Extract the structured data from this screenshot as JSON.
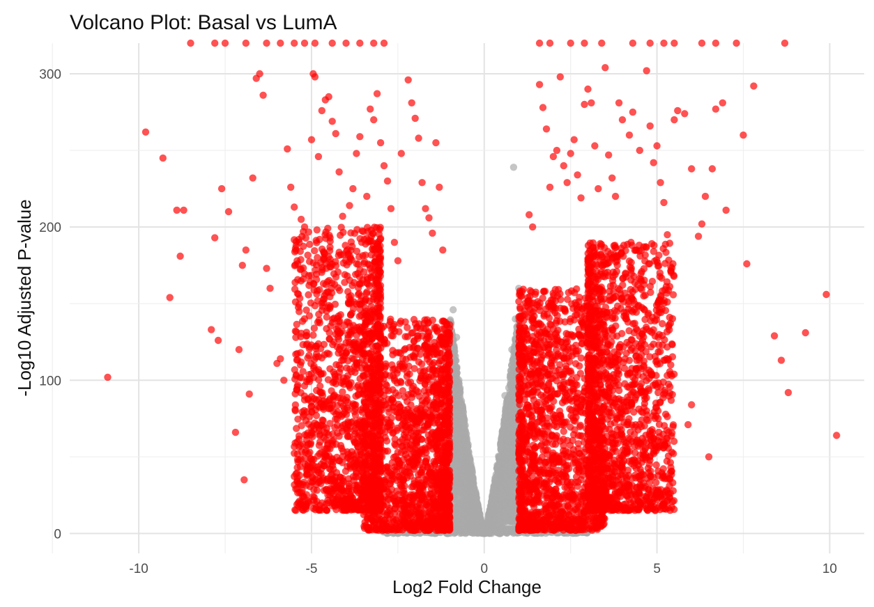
{
  "chart_data": {
    "type": "scatter",
    "title": "Volcano Plot: Basal vs LumA",
    "xlabel": "Log2 Fold Change",
    "ylabel": "-Log10 Adjusted P-value",
    "xlim": [
      -12,
      11
    ],
    "ylim": [
      -13,
      320
    ],
    "x_ticks": [
      -10,
      -5,
      0,
      5,
      10
    ],
    "x_tick_labels": [
      "-10",
      "-5",
      "0",
      "5",
      "10"
    ],
    "y_ticks": [
      0,
      100,
      200,
      300
    ],
    "y_tick_labels": [
      "0",
      "100",
      "200",
      "300"
    ],
    "grid": true,
    "legend": "none",
    "colors": {
      "significant": "#ff0000",
      "not_significant": "#a9a9a9"
    },
    "series": [
      {
        "color": "significant",
        "points": [
          [
            -10.9,
            102
          ],
          [
            -9.8,
            262
          ],
          [
            -9.3,
            245
          ],
          [
            -9.1,
            154
          ],
          [
            -8.9,
            211
          ],
          [
            -8.8,
            181
          ],
          [
            -8.7,
            211
          ],
          [
            -7.9,
            133
          ],
          [
            -7.8,
            193
          ],
          [
            -7.7,
            126
          ],
          [
            -7.6,
            225
          ],
          [
            -7.4,
            210
          ],
          [
            -7.2,
            66
          ],
          [
            -7.1,
            120
          ],
          [
            -7.0,
            175
          ],
          [
            -6.95,
            35
          ],
          [
            -6.9,
            185
          ],
          [
            -6.8,
            91
          ],
          [
            -6.7,
            232
          ],
          [
            -6.6,
            297
          ],
          [
            -6.5,
            300
          ],
          [
            -6.4,
            286
          ],
          [
            -6.3,
            173
          ],
          [
            -6.2,
            160
          ],
          [
            -6.0,
            111
          ],
          [
            -5.9,
            114
          ],
          [
            -5.8,
            100
          ],
          [
            -5.7,
            251
          ],
          [
            -5.6,
            226
          ],
          [
            -5.5,
            213
          ],
          [
            -5.4,
            176
          ],
          [
            -5.3,
            205
          ],
          [
            -5.2,
            200
          ],
          [
            -5.1,
            88
          ],
          [
            -5.0,
            257
          ],
          [
            -4.95,
            300
          ],
          [
            -4.9,
            298
          ],
          [
            -4.8,
            246
          ],
          [
            -4.7,
            276
          ],
          [
            -4.6,
            283
          ],
          [
            -4.5,
            285
          ],
          [
            -4.4,
            269
          ],
          [
            -4.3,
            261
          ],
          [
            -4.2,
            236
          ],
          [
            -4.1,
            207
          ],
          [
            -3.9,
            214
          ],
          [
            -3.8,
            225
          ],
          [
            -3.7,
            248
          ],
          [
            -3.6,
            259
          ],
          [
            -3.5,
            197
          ],
          [
            -3.4,
            220
          ],
          [
            -3.3,
            277
          ],
          [
            -3.2,
            270
          ],
          [
            -3.1,
            287
          ],
          [
            -3.0,
            255
          ],
          [
            -2.9,
            240
          ],
          [
            -2.8,
            230
          ],
          [
            -2.7,
            212
          ],
          [
            -2.6,
            190
          ],
          [
            -2.5,
            178
          ],
          [
            -2.4,
            248
          ],
          [
            -2.2,
            296
          ],
          [
            -2.1,
            281
          ],
          [
            -2.0,
            271
          ],
          [
            -1.9,
            258
          ],
          [
            -1.8,
            229
          ],
          [
            -1.7,
            212
          ],
          [
            -1.6,
            206
          ],
          [
            -1.5,
            196
          ],
          [
            -1.4,
            255
          ],
          [
            -1.3,
            226
          ],
          [
            -1.2,
            185
          ],
          [
            -8.5,
            320
          ],
          [
            -7.8,
            320
          ],
          [
            -7.5,
            320
          ],
          [
            -6.9,
            320
          ],
          [
            -6.3,
            320
          ],
          [
            -5.9,
            320
          ],
          [
            -5.5,
            320
          ],
          [
            -5.2,
            320
          ],
          [
            -4.9,
            320
          ],
          [
            -4.4,
            320
          ],
          [
            -4.0,
            320
          ],
          [
            -3.6,
            320
          ],
          [
            -3.2,
            320
          ],
          [
            -2.9,
            320
          ],
          [
            1.6,
            320
          ],
          [
            1.9,
            320
          ],
          [
            2.5,
            320
          ],
          [
            2.9,
            320
          ],
          [
            3.4,
            320
          ],
          [
            4.3,
            320
          ],
          [
            4.8,
            320
          ],
          [
            5.2,
            320
          ],
          [
            5.5,
            320
          ],
          [
            6.3,
            320
          ],
          [
            6.7,
            320
          ],
          [
            7.3,
            320
          ],
          [
            8.7,
            320
          ],
          [
            1.3,
            208
          ],
          [
            1.4,
            200
          ],
          [
            1.6,
            293
          ],
          [
            1.7,
            278
          ],
          [
            1.8,
            264
          ],
          [
            1.9,
            226
          ],
          [
            2.0,
            246
          ],
          [
            2.1,
            250
          ],
          [
            2.2,
            298
          ],
          [
            2.3,
            240
          ],
          [
            2.4,
            229
          ],
          [
            2.5,
            248
          ],
          [
            2.6,
            257
          ],
          [
            2.7,
            234
          ],
          [
            2.8,
            219
          ],
          [
            2.9,
            280
          ],
          [
            3.0,
            290
          ],
          [
            3.1,
            281
          ],
          [
            3.2,
            253
          ],
          [
            3.3,
            225
          ],
          [
            3.5,
            304
          ],
          [
            3.6,
            247
          ],
          [
            3.7,
            232
          ],
          [
            3.8,
            220
          ],
          [
            3.9,
            281
          ],
          [
            4.0,
            270
          ],
          [
            4.2,
            260
          ],
          [
            4.3,
            275
          ],
          [
            4.5,
            250
          ],
          [
            4.7,
            302
          ],
          [
            4.8,
            266
          ],
          [
            4.9,
            242
          ],
          [
            5.0,
            253
          ],
          [
            5.1,
            229
          ],
          [
            5.2,
            216
          ],
          [
            5.3,
            195
          ],
          [
            5.4,
            174
          ],
          [
            5.5,
            270
          ],
          [
            5.6,
            276
          ],
          [
            5.8,
            274
          ],
          [
            6.0,
            238
          ],
          [
            6.2,
            194
          ],
          [
            6.3,
            202
          ],
          [
            6.4,
            220
          ],
          [
            6.6,
            238
          ],
          [
            6.7,
            277
          ],
          [
            6.9,
            281
          ],
          [
            7.0,
            211
          ],
          [
            7.5,
            260
          ],
          [
            7.6,
            176
          ],
          [
            7.8,
            292
          ],
          [
            8.4,
            129
          ],
          [
            8.6,
            113
          ],
          [
            8.8,
            92
          ],
          [
            9.3,
            131
          ],
          [
            9.9,
            156
          ],
          [
            10.2,
            64
          ],
          [
            6.5,
            50
          ],
          [
            5.9,
            71
          ],
          [
            6.0,
            84
          ],
          [
            5.4,
            110
          ],
          [
            5.2,
            60
          ],
          [
            4.4,
            30
          ],
          [
            4.7,
            80
          ]
        ],
        "dense_regions": [
          {
            "x_range": [
              -3.5,
              -1.0
            ],
            "y_range": [
              2,
              140
            ]
          },
          {
            "x_range": [
              -5.5,
              -3.0
            ],
            "y_range": [
              15,
              200
            ]
          },
          {
            "x_range": [
              1.0,
              3.5
            ],
            "y_range": [
              2,
              160
            ]
          },
          {
            "x_range": [
              3.0,
              5.5
            ],
            "y_range": [
              15,
              190
            ]
          }
        ]
      },
      {
        "color": "not_significant",
        "points": [
          [
            -0.9,
            146
          ],
          [
            -0.8,
            128
          ],
          [
            -1.0,
            118
          ],
          [
            -0.7,
            95
          ],
          [
            -0.6,
            70
          ],
          [
            -0.5,
            50
          ],
          [
            -0.4,
            30
          ],
          [
            -0.3,
            15
          ],
          [
            -0.2,
            8
          ],
          [
            0.0,
            2
          ],
          [
            0.2,
            8
          ],
          [
            0.3,
            20
          ],
          [
            0.4,
            40
          ],
          [
            0.5,
            60
          ],
          [
            0.6,
            90
          ],
          [
            0.8,
            120
          ],
          [
            0.9,
            140
          ],
          [
            0.85,
            239
          ],
          [
            1.0,
            160
          ]
        ],
        "dense_regions": [
          {
            "shape": "v",
            "x_range": [
              -1.0,
              1.0
            ],
            "y_max": 145
          },
          {
            "shape": "baseline",
            "x_range": [
              -3.0,
              3.0
            ],
            "y_range": [
              0,
              3
            ]
          }
        ]
      }
    ]
  }
}
